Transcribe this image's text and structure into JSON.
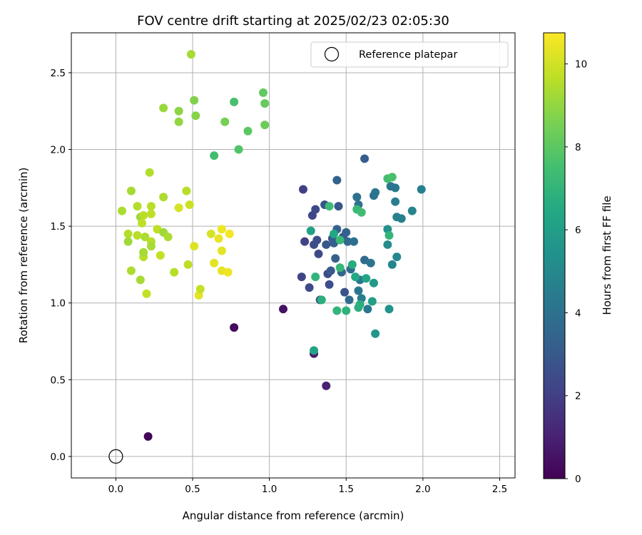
{
  "chart_data": {
    "type": "scatter",
    "title": "FOV centre drift starting at 2025/02/23 02:05:30",
    "xlabel": "Angular distance from reference (arcmin)",
    "ylabel": "Rotation from reference (arcmin)",
    "xlim": [
      -0.29,
      2.6
    ],
    "ylim": [
      -0.14,
      2.76
    ],
    "xticks": [
      0.0,
      0.5,
      1.0,
      1.5,
      2.0,
      2.5
    ],
    "yticks": [
      0.0,
      0.5,
      1.0,
      1.5,
      2.0,
      2.5
    ],
    "xtick_labels": [
      "0.0",
      "0.5",
      "1.0",
      "1.5",
      "2.0",
      "2.5"
    ],
    "ytick_labels": [
      "0.0",
      "0.5",
      "1.0",
      "1.5",
      "2.0",
      "2.5"
    ],
    "grid": true,
    "legend": {
      "label": "Reference platepar",
      "placement": "top-right"
    },
    "reference_point": {
      "x": 0.0,
      "y": 0.0
    },
    "colorbar": {
      "label": "Hours from first FF file",
      "colormap": "viridis",
      "range": [
        0,
        10.75
      ],
      "ticks": [
        0,
        2,
        4,
        6,
        8,
        10
      ],
      "tick_labels": [
        "0",
        "2",
        "4",
        "6",
        "8",
        "10"
      ]
    },
    "points": [
      {
        "x": 0.21,
        "y": 0.13,
        "t": 0.1
      },
      {
        "x": 0.77,
        "y": 0.84,
        "t": 0.3
      },
      {
        "x": 1.09,
        "y": 0.96,
        "t": 0.5
      },
      {
        "x": 1.29,
        "y": 0.67,
        "t": 0.8
      },
      {
        "x": 1.37,
        "y": 0.46,
        "t": 1.0
      },
      {
        "x": 1.22,
        "y": 1.74,
        "t": 2.0
      },
      {
        "x": 1.23,
        "y": 1.4,
        "t": 2.1
      },
      {
        "x": 1.21,
        "y": 1.17,
        "t": 2.2
      },
      {
        "x": 1.26,
        "y": 1.1,
        "t": 2.3
      },
      {
        "x": 1.28,
        "y": 1.57,
        "t": 2.2
      },
      {
        "x": 1.3,
        "y": 1.61,
        "t": 2.4
      },
      {
        "x": 1.29,
        "y": 1.38,
        "t": 2.5
      },
      {
        "x": 1.31,
        "y": 1.41,
        "t": 2.6
      },
      {
        "x": 1.32,
        "y": 1.32,
        "t": 2.4
      },
      {
        "x": 1.33,
        "y": 1.02,
        "t": 2.7
      },
      {
        "x": 1.36,
        "y": 1.64,
        "t": 2.8
      },
      {
        "x": 1.37,
        "y": 1.38,
        "t": 2.9
      },
      {
        "x": 1.38,
        "y": 1.19,
        "t": 2.5
      },
      {
        "x": 1.39,
        "y": 1.12,
        "t": 2.6
      },
      {
        "x": 1.4,
        "y": 1.21,
        "t": 3.0
      },
      {
        "x": 1.41,
        "y": 1.42,
        "t": 3.1
      },
      {
        "x": 1.42,
        "y": 1.39,
        "t": 3.2
      },
      {
        "x": 1.43,
        "y": 1.29,
        "t": 3.3
      },
      {
        "x": 1.44,
        "y": 1.8,
        "t": 3.4
      },
      {
        "x": 1.44,
        "y": 1.48,
        "t": 3.3
      },
      {
        "x": 1.45,
        "y": 1.63,
        "t": 2.9
      },
      {
        "x": 1.47,
        "y": 1.2,
        "t": 3.5
      },
      {
        "x": 1.48,
        "y": 1.43,
        "t": 3.0
      },
      {
        "x": 1.49,
        "y": 1.07,
        "t": 2.8
      },
      {
        "x": 1.5,
        "y": 1.46,
        "t": 3.4
      },
      {
        "x": 1.51,
        "y": 1.4,
        "t": 3.6
      },
      {
        "x": 1.52,
        "y": 1.02,
        "t": 3.7
      },
      {
        "x": 1.53,
        "y": 1.22,
        "t": 3.8
      },
      {
        "x": 1.55,
        "y": 1.4,
        "t": 3.9
      },
      {
        "x": 1.57,
        "y": 1.69,
        "t": 4.0
      },
      {
        "x": 1.58,
        "y": 1.64,
        "t": 4.1
      },
      {
        "x": 1.58,
        "y": 1.08,
        "t": 4.2
      },
      {
        "x": 1.59,
        "y": 1.15,
        "t": 4.4
      },
      {
        "x": 1.6,
        "y": 1.03,
        "t": 4.5
      },
      {
        "x": 1.62,
        "y": 1.94,
        "t": 3.2
      },
      {
        "x": 1.62,
        "y": 1.28,
        "t": 3.8
      },
      {
        "x": 1.64,
        "y": 0.96,
        "t": 4.3
      },
      {
        "x": 1.66,
        "y": 1.26,
        "t": 4.1
      },
      {
        "x": 1.68,
        "y": 1.7,
        "t": 4.0
      },
      {
        "x": 1.69,
        "y": 1.72,
        "t": 4.2
      },
      {
        "x": 1.79,
        "y": 1.76,
        "t": 4.2
      },
      {
        "x": 1.82,
        "y": 1.75,
        "t": 4.3
      },
      {
        "x": 1.82,
        "y": 1.66,
        "t": 4.5
      },
      {
        "x": 1.86,
        "y": 1.55,
        "t": 4.6
      },
      {
        "x": 1.83,
        "y": 1.56,
        "t": 4.7
      },
      {
        "x": 1.93,
        "y": 1.6,
        "t": 4.8
      },
      {
        "x": 1.99,
        "y": 1.74,
        "t": 4.6
      },
      {
        "x": 1.8,
        "y": 1.25,
        "t": 4.9
      },
      {
        "x": 1.83,
        "y": 1.3,
        "t": 5.0
      },
      {
        "x": 1.77,
        "y": 1.38,
        "t": 5.2
      },
      {
        "x": 1.77,
        "y": 1.48,
        "t": 5.4
      },
      {
        "x": 1.78,
        "y": 0.96,
        "t": 5.5
      },
      {
        "x": 1.69,
        "y": 0.8,
        "t": 5.6
      },
      {
        "x": 1.68,
        "y": 1.13,
        "t": 5.8
      },
      {
        "x": 1.67,
        "y": 1.01,
        "t": 6.0
      },
      {
        "x": 1.63,
        "y": 1.16,
        "t": 6.3
      },
      {
        "x": 1.56,
        "y": 1.17,
        "t": 6.5
      },
      {
        "x": 1.54,
        "y": 1.25,
        "t": 6.6
      },
      {
        "x": 1.59,
        "y": 0.99,
        "t": 6.7
      },
      {
        "x": 1.58,
        "y": 0.97,
        "t": 6.8
      },
      {
        "x": 1.5,
        "y": 0.95,
        "t": 6.9
      },
      {
        "x": 1.44,
        "y": 0.95,
        "t": 7.0
      },
      {
        "x": 1.46,
        "y": 1.23,
        "t": 7.1
      },
      {
        "x": 1.46,
        "y": 1.41,
        "t": 7.2
      },
      {
        "x": 1.42,
        "y": 1.45,
        "t": 6.4
      },
      {
        "x": 1.39,
        "y": 1.63,
        "t": 7.3
      },
      {
        "x": 1.34,
        "y": 1.02,
        "t": 6.8
      },
      {
        "x": 1.3,
        "y": 1.17,
        "t": 7.0
      },
      {
        "x": 1.29,
        "y": 0.69,
        "t": 6.2
      },
      {
        "x": 1.27,
        "y": 1.47,
        "t": 6.1
      },
      {
        "x": 1.57,
        "y": 1.61,
        "t": 7.2
      },
      {
        "x": 1.6,
        "y": 1.59,
        "t": 7.4
      },
      {
        "x": 1.78,
        "y": 1.44,
        "t": 7.0
      },
      {
        "x": 1.77,
        "y": 1.81,
        "t": 7.5
      },
      {
        "x": 1.8,
        "y": 1.82,
        "t": 7.6
      },
      {
        "x": 0.64,
        "y": 1.96,
        "t": 7.5
      },
      {
        "x": 0.77,
        "y": 2.31,
        "t": 7.6
      },
      {
        "x": 0.8,
        "y": 2.0,
        "t": 7.8
      },
      {
        "x": 0.86,
        "y": 2.12,
        "t": 8.0
      },
      {
        "x": 0.96,
        "y": 2.37,
        "t": 8.1
      },
      {
        "x": 0.97,
        "y": 2.3,
        "t": 8.2
      },
      {
        "x": 0.97,
        "y": 2.16,
        "t": 8.3
      },
      {
        "x": 0.71,
        "y": 2.18,
        "t": 8.5
      },
      {
        "x": 0.51,
        "y": 2.32,
        "t": 8.7
      },
      {
        "x": 0.52,
        "y": 2.22,
        "t": 8.8
      },
      {
        "x": 0.41,
        "y": 2.25,
        "t": 8.9
      },
      {
        "x": 0.41,
        "y": 2.18,
        "t": 9.0
      },
      {
        "x": 0.31,
        "y": 2.27,
        "t": 9.1
      },
      {
        "x": 0.49,
        "y": 2.62,
        "t": 9.3
      },
      {
        "x": 0.04,
        "y": 1.6,
        "t": 9.4
      },
      {
        "x": 0.1,
        "y": 1.73,
        "t": 9.3
      },
      {
        "x": 0.08,
        "y": 1.45,
        "t": 9.5
      },
      {
        "x": 0.08,
        "y": 1.4,
        "t": 9.2
      },
      {
        "x": 0.1,
        "y": 1.21,
        "t": 9.4
      },
      {
        "x": 0.14,
        "y": 1.63,
        "t": 9.5
      },
      {
        "x": 0.14,
        "y": 1.44,
        "t": 9.6
      },
      {
        "x": 0.16,
        "y": 1.56,
        "t": 9.2
      },
      {
        "x": 0.16,
        "y": 1.15,
        "t": 9.3
      },
      {
        "x": 0.18,
        "y": 1.57,
        "t": 9.6
      },
      {
        "x": 0.17,
        "y": 1.52,
        "t": 9.7
      },
      {
        "x": 0.18,
        "y": 1.3,
        "t": 9.6
      },
      {
        "x": 0.18,
        "y": 1.33,
        "t": 9.3
      },
      {
        "x": 0.2,
        "y": 1.06,
        "t": 9.8
      },
      {
        "x": 0.19,
        "y": 1.43,
        "t": 9.4
      },
      {
        "x": 0.22,
        "y": 1.85,
        "t": 9.5
      },
      {
        "x": 0.23,
        "y": 1.63,
        "t": 9.6
      },
      {
        "x": 0.23,
        "y": 1.58,
        "t": 9.7
      },
      {
        "x": 0.23,
        "y": 1.4,
        "t": 9.6
      },
      {
        "x": 0.23,
        "y": 1.37,
        "t": 9.3
      },
      {
        "x": 0.27,
        "y": 1.48,
        "t": 9.7
      },
      {
        "x": 0.29,
        "y": 1.31,
        "t": 9.8
      },
      {
        "x": 0.31,
        "y": 1.69,
        "t": 9.4
      },
      {
        "x": 0.31,
        "y": 1.46,
        "t": 9.2
      },
      {
        "x": 0.34,
        "y": 1.43,
        "t": 9.4
      },
      {
        "x": 0.38,
        "y": 1.2,
        "t": 9.6
      },
      {
        "x": 0.41,
        "y": 1.62,
        "t": 10.1
      },
      {
        "x": 0.46,
        "y": 1.73,
        "t": 9.6
      },
      {
        "x": 0.47,
        "y": 1.25,
        "t": 9.7
      },
      {
        "x": 0.48,
        "y": 1.64,
        "t": 9.9
      },
      {
        "x": 0.51,
        "y": 1.37,
        "t": 10.2
      },
      {
        "x": 0.54,
        "y": 1.05,
        "t": 10.3
      },
      {
        "x": 0.55,
        "y": 1.09,
        "t": 9.8
      },
      {
        "x": 0.62,
        "y": 1.45,
        "t": 10.1
      },
      {
        "x": 0.64,
        "y": 1.26,
        "t": 10.3
      },
      {
        "x": 0.67,
        "y": 1.42,
        "t": 10.4
      },
      {
        "x": 0.69,
        "y": 1.48,
        "t": 10.5
      },
      {
        "x": 0.69,
        "y": 1.34,
        "t": 10.3
      },
      {
        "x": 0.69,
        "y": 1.21,
        "t": 10.4
      },
      {
        "x": 0.73,
        "y": 1.2,
        "t": 10.5
      },
      {
        "x": 0.74,
        "y": 1.45,
        "t": 10.6
      }
    ]
  }
}
